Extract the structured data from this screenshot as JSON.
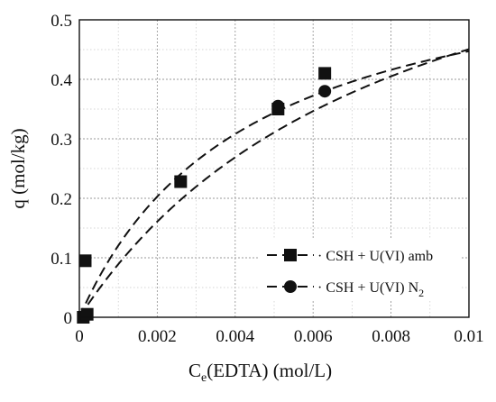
{
  "chart_data": {
    "type": "scatter",
    "title": "",
    "xlabel_main": "C",
    "xlabel_sub": "e",
    "xlabel_rest": "(EDTA) (mol/L)",
    "ylabel": "q (mol/kg)",
    "xlim": [
      0,
      0.01
    ],
    "ylim": [
      0,
      0.5
    ],
    "xticks": [
      "0",
      "0.002",
      "0.004",
      "0.006",
      "0.008",
      "0.01"
    ],
    "yticks": [
      "0",
      "0.1",
      "0.2",
      "0.3",
      "0.4",
      "0.5"
    ],
    "xtick_values": [
      0,
      0.002,
      0.004,
      0.006,
      0.008,
      0.01
    ],
    "ytick_values": [
      0,
      0.1,
      0.2,
      0.3,
      0.4,
      0.5
    ],
    "minor_x_step": 0.001,
    "minor_y_step": 0.05,
    "grid": true,
    "legend_position": "lower-right",
    "series": [
      {
        "name": "CSH + U(VI) amb",
        "legend_prefix": "· CSH + U(VI) amb",
        "legend_sub": "",
        "marker": "square",
        "color": "#111111",
        "points": [
          {
            "x": 0.0001,
            "y": 0.0
          },
          {
            "x": 0.00015,
            "y": 0.095
          },
          {
            "x": 0.0002,
            "y": 0.005
          },
          {
            "x": 0.0026,
            "y": 0.228
          },
          {
            "x": 0.0051,
            "y": 0.35
          },
          {
            "x": 0.0063,
            "y": 0.41
          }
        ],
        "fit": {
          "model": "langmuir",
          "qmax": 0.82,
          "K": 122
        }
      },
      {
        "name": "CSH + U(VI) N2",
        "legend_prefix": "· CSH + U(VI) N",
        "legend_sub": "2",
        "marker": "circle",
        "color": "#111111",
        "points": [
          {
            "x": 0.0051,
            "y": 0.355
          },
          {
            "x": 0.0063,
            "y": 0.38
          }
        ],
        "fit": {
          "model": "langmuir",
          "qmax": 0.64,
          "K": 232
        }
      }
    ]
  }
}
